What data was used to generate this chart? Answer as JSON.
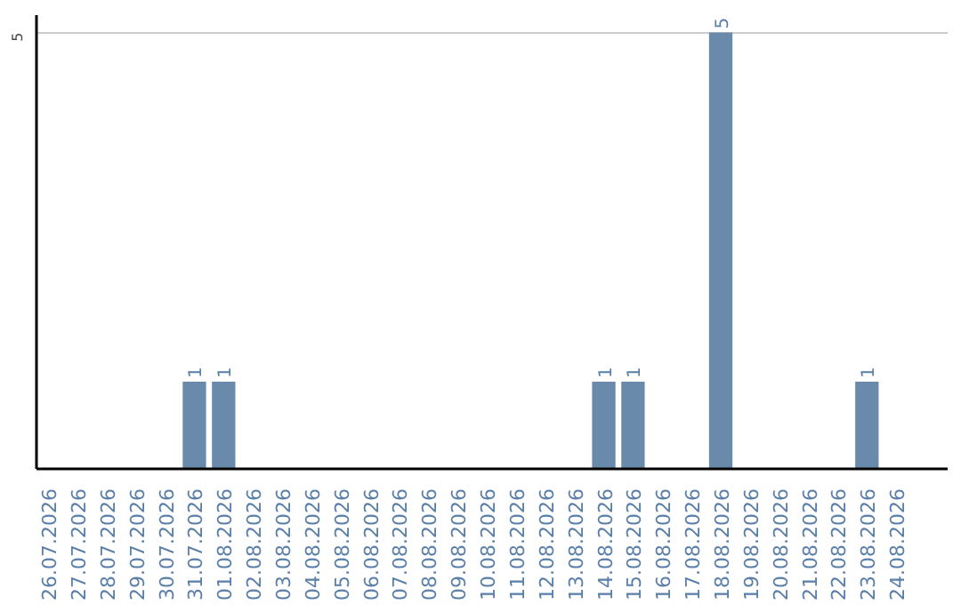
{
  "chart_data": {
    "type": "bar",
    "categories": [
      "26.07.2026",
      "27.07.2026",
      "28.07.2026",
      "29.07.2026",
      "30.07.2026",
      "31.07.2026",
      "01.08.2026",
      "02.08.2026",
      "03.08.2026",
      "04.08.2026",
      "05.08.2026",
      "06.08.2026",
      "07.08.2026",
      "08.08.2026",
      "09.08.2026",
      "10.08.2026",
      "11.08.2026",
      "12.08.2026",
      "13.08.2026",
      "14.08.2026",
      "15.08.2026",
      "16.08.2026",
      "17.08.2026",
      "18.08.2026",
      "19.08.2026",
      "20.08.2026",
      "21.08.2026",
      "22.08.2026",
      "23.08.2026",
      "24.08.2026"
    ],
    "values": [
      0,
      0,
      0,
      0,
      0,
      1,
      1,
      0,
      0,
      0,
      0,
      0,
      0,
      0,
      0,
      0,
      0,
      0,
      0,
      1,
      1,
      0,
      0,
      5,
      0,
      0,
      0,
      0,
      1,
      0
    ],
    "value_labels": [
      null,
      null,
      null,
      null,
      null,
      "1",
      "1",
      null,
      null,
      null,
      null,
      null,
      null,
      null,
      null,
      null,
      null,
      null,
      null,
      "1",
      "1",
      null,
      null,
      "5",
      null,
      null,
      null,
      null,
      "1",
      null
    ],
    "color": "#6a8aab",
    "ylim": [
      0,
      5.2
    ],
    "yticks": [
      5
    ],
    "grid": "y"
  }
}
